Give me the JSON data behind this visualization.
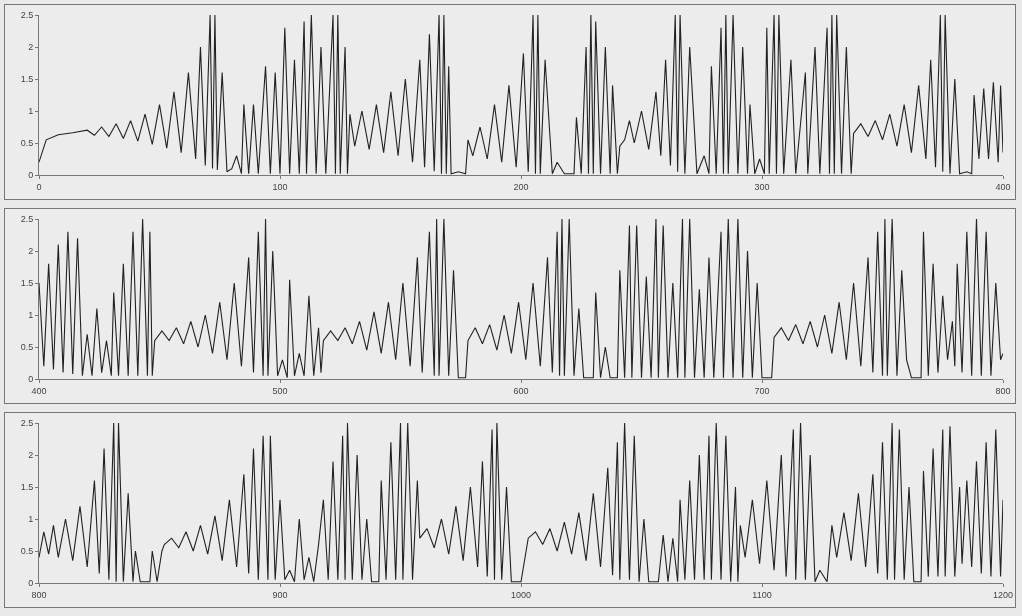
{
  "chart_data": [
    {
      "type": "line",
      "color": "#222222",
      "xlim": [
        0,
        400
      ],
      "xticks": [
        0,
        100,
        200,
        300,
        400
      ],
      "ylim": [
        0,
        2.5
      ],
      "yticks": [
        0,
        0.5,
        1,
        1.5,
        2,
        2.5
      ],
      "grid": false,
      "x": [
        0,
        3,
        8,
        14,
        20,
        23,
        26,
        29,
        32,
        35,
        38,
        41,
        44,
        47,
        50,
        53,
        56,
        59,
        62,
        65,
        67,
        69,
        71,
        72,
        73,
        74,
        76,
        78,
        80,
        82,
        84,
        85,
        87,
        89,
        91,
        94,
        96,
        98,
        100,
        102,
        104,
        106,
        108,
        110,
        111,
        113,
        115,
        117,
        119,
        122,
        123,
        124,
        125,
        127,
        128,
        129,
        131,
        134,
        137,
        140,
        143,
        146,
        149,
        152,
        155,
        158,
        160,
        162,
        164,
        166,
        167,
        168,
        169,
        170,
        171,
        174,
        177,
        178,
        180,
        183,
        186,
        189,
        192,
        195,
        198,
        201,
        203,
        205,
        206,
        207,
        208,
        210,
        213,
        215,
        218,
        222,
        223,
        225,
        227,
        228,
        229,
        230,
        231,
        233,
        235,
        237,
        238,
        240,
        241,
        243,
        245,
        247,
        250,
        253,
        256,
        258,
        260,
        262,
        264,
        265,
        266,
        268,
        270,
        273,
        276,
        278,
        279,
        281,
        283,
        284,
        285,
        286,
        288,
        290,
        292,
        294,
        295,
        297,
        299,
        301,
        302,
        303,
        305,
        306,
        307,
        309,
        312,
        314,
        317,
        318,
        319,
        322,
        324,
        327,
        328,
        329,
        330,
        331,
        333,
        335,
        337,
        338,
        341,
        344,
        347,
        350,
        353,
        356,
        359,
        362,
        365,
        368,
        370,
        372,
        374,
        375,
        376,
        378,
        380,
        382,
        385,
        387,
        388,
        390,
        392,
        394,
        396,
        398,
        399,
        400
      ],
      "values": [
        0.2,
        0.55,
        0.63,
        0.66,
        0.7,
        0.62,
        0.75,
        0.6,
        0.8,
        0.57,
        0.85,
        0.53,
        0.95,
        0.48,
        1.1,
        0.42,
        1.3,
        0.35,
        1.6,
        0.25,
        2.0,
        0.15,
        2.5,
        0.1,
        2.5,
        0.08,
        1.6,
        0.05,
        0.1,
        0.3,
        0.02,
        1.1,
        0.02,
        1.1,
        0.02,
        1.7,
        0.02,
        1.6,
        0.02,
        2.3,
        0.02,
        1.8,
        0.02,
        2.4,
        0.02,
        2.5,
        0.02,
        2.0,
        0.02,
        2.5,
        0.02,
        2.5,
        0.02,
        2.0,
        0.02,
        0.95,
        0.45,
        1.0,
        0.4,
        1.1,
        0.35,
        1.3,
        0.3,
        1.5,
        0.2,
        1.8,
        0.12,
        2.2,
        0.06,
        2.5,
        0.02,
        2.5,
        0.02,
        1.7,
        0.02,
        0.05,
        0.02,
        0.55,
        0.3,
        0.75,
        0.25,
        1.1,
        0.2,
        1.4,
        0.12,
        1.9,
        0.05,
        2.5,
        0.02,
        2.5,
        0.02,
        1.8,
        0.02,
        0.2,
        0.02,
        0.02,
        0.9,
        0.02,
        2.0,
        0.02,
        2.5,
        0.02,
        2.4,
        0.02,
        2.0,
        0.02,
        1.4,
        0.02,
        0.45,
        0.55,
        0.85,
        0.5,
        1.0,
        0.4,
        1.3,
        0.3,
        1.8,
        0.15,
        2.5,
        0.05,
        2.5,
        0.02,
        2.0,
        0.02,
        0.3,
        0.02,
        1.7,
        0.02,
        2.3,
        0.02,
        2.5,
        0.02,
        2.5,
        0.02,
        2.0,
        0.02,
        1.1,
        0.02,
        0.25,
        0.02,
        2.3,
        0.02,
        2.5,
        0.02,
        2.5,
        0.02,
        1.8,
        0.02,
        1.2,
        1.6,
        0.02,
        2.0,
        0.02,
        2.3,
        0.02,
        2.5,
        0.02,
        2.5,
        0.02,
        2.0,
        0.02,
        0.65,
        0.8,
        0.6,
        0.85,
        0.55,
        0.95,
        0.45,
        1.1,
        0.35,
        1.4,
        0.25,
        1.8,
        0.12,
        2.5,
        0.05,
        2.5,
        0.02,
        1.5,
        0.02,
        0.05,
        0.02,
        1.25,
        0.25,
        1.35,
        0.25,
        1.45,
        0.2,
        1.4,
        0.35
      ]
    },
    {
      "type": "line",
      "color": "#222222",
      "xlim": [
        400,
        800
      ],
      "xticks": [
        400,
        500,
        600,
        700,
        800
      ],
      "ylim": [
        0,
        2.5
      ],
      "yticks": [
        0,
        0.5,
        1,
        1.5,
        2,
        2.5
      ],
      "grid": false,
      "x": [
        400,
        402,
        404,
        406,
        408,
        410,
        412,
        414,
        416,
        418,
        420,
        422,
        424,
        426,
        428,
        430,
        431,
        433,
        435,
        437,
        439,
        441,
        443,
        445,
        446,
        447,
        448,
        451,
        454,
        457,
        460,
        463,
        466,
        469,
        472,
        475,
        478,
        481,
        484,
        487,
        489,
        491,
        493,
        494,
        495,
        497,
        499,
        501,
        503,
        504,
        506,
        508,
        510,
        512,
        514,
        516,
        517,
        518,
        521,
        524,
        527,
        530,
        533,
        536,
        539,
        542,
        545,
        548,
        551,
        554,
        557,
        559,
        562,
        564,
        565,
        566,
        568,
        570,
        572,
        574,
        577,
        578,
        581,
        584,
        587,
        590,
        593,
        596,
        599,
        602,
        605,
        608,
        611,
        613,
        615,
        616,
        617,
        618,
        620,
        622,
        624,
        626,
        630,
        631,
        633,
        635,
        637,
        640,
        641,
        643,
        645,
        646,
        648,
        650,
        652,
        654,
        656,
        657,
        659,
        661,
        663,
        665,
        667,
        668,
        670,
        672,
        674,
        676,
        678,
        680,
        683,
        684,
        686,
        688,
        690,
        692,
        694,
        696,
        698,
        700,
        704,
        705,
        708,
        711,
        714,
        717,
        720,
        723,
        726,
        729,
        732,
        735,
        738,
        741,
        744,
        746,
        748,
        750,
        751,
        752,
        754,
        756,
        758,
        760,
        762,
        766,
        767,
        769,
        771,
        773,
        775,
        777,
        779,
        780,
        781,
        783,
        785,
        787,
        789,
        791,
        793,
        795,
        797,
        799,
        800
      ],
      "values": [
        1.5,
        0.2,
        1.8,
        0.15,
        2.1,
        0.1,
        2.3,
        0.08,
        2.2,
        0.05,
        0.7,
        0.05,
        1.1,
        0.1,
        0.6,
        0.05,
        1.35,
        0.05,
        1.8,
        0.05,
        2.3,
        0.05,
        2.5,
        0.05,
        2.3,
        0.05,
        0.6,
        0.75,
        0.6,
        0.8,
        0.55,
        0.9,
        0.5,
        1.0,
        0.4,
        1.2,
        0.3,
        1.5,
        0.2,
        1.9,
        0.1,
        2.3,
        0.05,
        2.5,
        0.05,
        2.0,
        0.05,
        0.3,
        0.02,
        1.55,
        0.05,
        0.4,
        0.05,
        1.3,
        0.05,
        0.8,
        0.1,
        0.6,
        0.75,
        0.6,
        0.8,
        0.55,
        0.9,
        0.45,
        1.05,
        0.4,
        1.2,
        0.3,
        1.5,
        0.2,
        1.9,
        0.1,
        2.3,
        0.05,
        2.5,
        0.05,
        2.5,
        0.05,
        1.7,
        0.02,
        0.02,
        0.6,
        0.8,
        0.55,
        0.85,
        0.45,
        1.0,
        0.4,
        1.2,
        0.3,
        1.5,
        0.2,
        1.9,
        0.1,
        2.3,
        0.05,
        2.5,
        0.05,
        2.5,
        0.05,
        1.1,
        0.02,
        0.02,
        1.35,
        0.02,
        0.5,
        0.02,
        0.02,
        1.7,
        0.02,
        2.4,
        0.02,
        2.4,
        0.02,
        1.6,
        0.02,
        2.5,
        0.02,
        2.4,
        0.02,
        1.5,
        0.02,
        2.5,
        0.02,
        2.5,
        0.02,
        1.4,
        0.02,
        1.9,
        0.02,
        2.3,
        0.02,
        2.5,
        0.02,
        2.5,
        0.02,
        2.0,
        0.02,
        1.5,
        0.02,
        0.02,
        0.65,
        0.8,
        0.6,
        0.85,
        0.55,
        0.9,
        0.5,
        1.0,
        0.4,
        1.2,
        0.3,
        1.5,
        0.2,
        1.9,
        0.1,
        2.3,
        0.05,
        2.5,
        0.05,
        2.5,
        0.05,
        1.7,
        0.3,
        0.02,
        0.02,
        2.3,
        0.05,
        1.8,
        0.1,
        1.3,
        0.3,
        0.9,
        0.2,
        1.8,
        0.1,
        2.3,
        0.05,
        2.5,
        0.05,
        2.3,
        0.05,
        1.5,
        0.3,
        0.4
      ]
    },
    {
      "type": "line",
      "color": "#222222",
      "xlim": [
        800,
        1200
      ],
      "xticks": [
        800,
        900,
        1000,
        1100,
        1200
      ],
      "ylim": [
        0,
        2.5
      ],
      "yticks": [
        0,
        0.5,
        1,
        1.5,
        2,
        2.5
      ],
      "grid": false,
      "x": [
        800,
        802,
        804,
        806,
        808,
        811,
        814,
        817,
        820,
        823,
        825,
        827,
        829,
        831,
        832,
        833,
        835,
        837,
        839,
        840,
        842,
        846,
        847,
        849,
        851,
        852,
        855,
        858,
        861,
        864,
        867,
        870,
        873,
        876,
        879,
        882,
        885,
        887,
        889,
        891,
        893,
        895,
        896,
        898,
        900,
        902,
        904,
        906,
        908,
        910,
        912,
        914,
        916,
        918,
        920,
        922,
        924,
        926,
        927,
        928,
        930,
        932,
        934,
        936,
        938,
        941,
        942,
        944,
        946,
        948,
        950,
        951,
        953,
        955,
        957,
        958,
        961,
        964,
        967,
        970,
        973,
        976,
        979,
        982,
        984,
        986,
        988,
        989,
        990,
        992,
        994,
        996,
        1000,
        1003,
        1006,
        1009,
        1012,
        1015,
        1018,
        1021,
        1024,
        1027,
        1030,
        1033,
        1036,
        1038,
        1040,
        1041,
        1043,
        1045,
        1047,
        1049,
        1051,
        1053,
        1057,
        1059,
        1061,
        1063,
        1065,
        1066,
        1068,
        1070,
        1072,
        1074,
        1076,
        1078,
        1079,
        1081,
        1083,
        1085,
        1087,
        1089,
        1090,
        1091,
        1093,
        1096,
        1099,
        1102,
        1105,
        1108,
        1110,
        1113,
        1114,
        1116,
        1118,
        1120,
        1122,
        1124,
        1127,
        1129,
        1131,
        1134,
        1137,
        1140,
        1143,
        1146,
        1148,
        1150,
        1152,
        1154,
        1155,
        1157,
        1159,
        1161,
        1163,
        1166,
        1167,
        1169,
        1171,
        1173,
        1175,
        1176,
        1178,
        1180,
        1182,
        1183,
        1185,
        1187,
        1189,
        1191,
        1193,
        1195,
        1197,
        1199,
        1200
      ],
      "values": [
        0.4,
        0.8,
        0.45,
        0.9,
        0.4,
        1.0,
        0.35,
        1.2,
        0.25,
        1.6,
        0.15,
        2.1,
        0.05,
        2.5,
        0.02,
        2.5,
        0.02,
        1.4,
        0.02,
        0.5,
        0.02,
        0.02,
        0.5,
        0.02,
        0.5,
        0.6,
        0.7,
        0.55,
        0.8,
        0.5,
        0.9,
        0.45,
        1.05,
        0.35,
        1.3,
        0.25,
        1.7,
        0.15,
        2.1,
        0.05,
        2.3,
        0.05,
        2.3,
        0.05,
        1.3,
        0.05,
        0.2,
        0.02,
        1.0,
        0.05,
        0.4,
        0.02,
        0.6,
        1.3,
        0.05,
        1.9,
        0.05,
        2.3,
        0.05,
        2.5,
        0.05,
        2.0,
        0.05,
        1.0,
        0.02,
        0.02,
        1.6,
        0.05,
        2.2,
        0.05,
        2.5,
        0.05,
        2.5,
        0.05,
        1.6,
        0.7,
        0.85,
        0.55,
        1.0,
        0.45,
        1.2,
        0.35,
        1.5,
        0.25,
        1.9,
        0.1,
        2.4,
        0.05,
        2.5,
        0.05,
        1.5,
        0.02,
        0.02,
        0.7,
        0.8,
        0.6,
        0.85,
        0.5,
        0.95,
        0.45,
        1.1,
        0.35,
        1.4,
        0.25,
        1.8,
        0.12,
        2.2,
        0.05,
        2.5,
        0.05,
        2.3,
        0.02,
        1.0,
        0.02,
        0.02,
        0.75,
        0.02,
        0.7,
        0.02,
        1.3,
        0.05,
        1.6,
        0.05,
        2.0,
        0.05,
        2.3,
        0.05,
        2.5,
        0.05,
        2.3,
        0.02,
        1.5,
        0.02,
        0.9,
        0.4,
        1.3,
        0.3,
        1.6,
        0.2,
        2.0,
        0.1,
        2.4,
        0.05,
        2.5,
        0.05,
        2.0,
        0.02,
        0.2,
        0.02,
        0.9,
        0.4,
        1.1,
        0.35,
        1.4,
        0.25,
        1.7,
        0.15,
        2.2,
        0.05,
        2.5,
        0.05,
        2.4,
        0.05,
        1.5,
        0.02,
        0.02,
        1.75,
        0.1,
        2.1,
        0.1,
        2.4,
        0.1,
        2.45,
        0.1,
        1.5,
        0.3,
        1.6,
        0.25,
        1.9,
        0.15,
        2.2,
        0.1,
        2.4,
        0.1,
        1.3
      ]
    }
  ]
}
